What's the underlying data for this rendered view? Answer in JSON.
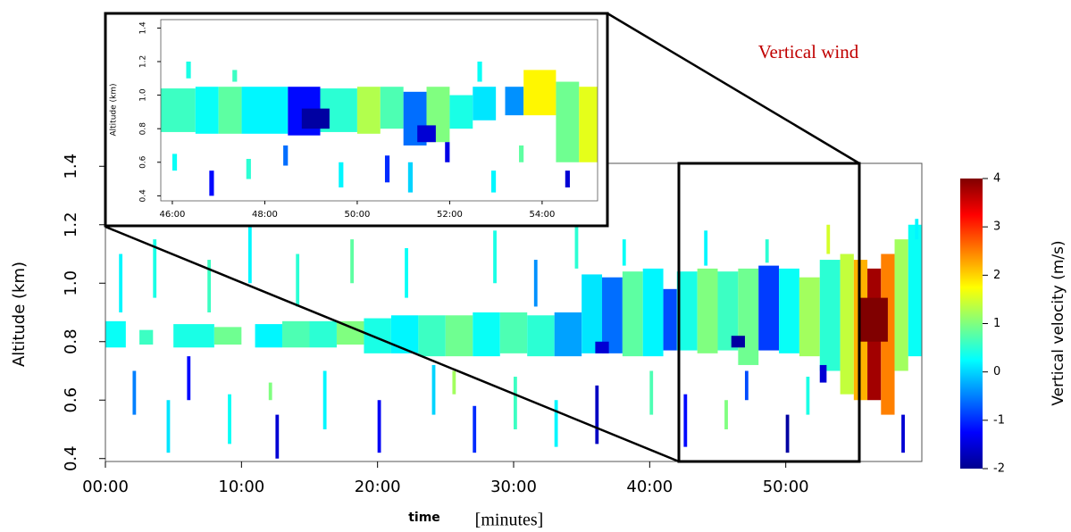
{
  "chart_data": [
    {
      "type": "heatmap",
      "title": "Vertical wind",
      "xlabel": "time",
      "xlabel_note": "[minutes]",
      "ylabel": "Altitude (km)",
      "xlim": [
        0,
        60
      ],
      "ylim": [
        0.39,
        1.41
      ],
      "xticks": [
        {
          "value": 0,
          "label": "00:00"
        },
        {
          "value": 10,
          "label": "10:00"
        },
        {
          "value": 20,
          "label": "20:00"
        },
        {
          "value": 30,
          "label": "30:00"
        },
        {
          "value": 40,
          "label": "40:00"
        },
        {
          "value": 50,
          "label": "50:00"
        }
      ],
      "yticks": [
        0.4,
        0.6,
        0.8,
        {
          "value": 1,
          "label": "1.0"
        },
        1.2,
        1.4
      ],
      "colorbar": {
        "label": "Vertical velocity (m/s)",
        "clim": [
          -2,
          4
        ],
        "ticks": [
          -2,
          -1,
          0,
          1,
          2,
          3,
          4
        ],
        "colormap": "jet"
      },
      "cells": [
        [
          0,
          1.5,
          0.78,
          0.87,
          0.3
        ],
        [
          2.5,
          3.5,
          0.79,
          0.84,
          0.6
        ],
        [
          5,
          8,
          0.78,
          0.86,
          0.4
        ],
        [
          8,
          10,
          0.79,
          0.85,
          0.9
        ],
        [
          11,
          13,
          0.78,
          0.86,
          0.2
        ],
        [
          13,
          15,
          0.78,
          0.87,
          0.7
        ],
        [
          15,
          17,
          0.78,
          0.87,
          0.5
        ],
        [
          17,
          19,
          0.79,
          0.87,
          1.0
        ],
        [
          19,
          21,
          0.76,
          0.88,
          0.4
        ],
        [
          21,
          23,
          0.76,
          0.89,
          0.2
        ],
        [
          23,
          25,
          0.75,
          0.89,
          0.6
        ],
        [
          25,
          27,
          0.75,
          0.89,
          0.9
        ],
        [
          27,
          29,
          0.75,
          0.9,
          0.3
        ],
        [
          29,
          31,
          0.76,
          0.9,
          0.7
        ],
        [
          31,
          33,
          0.75,
          0.89,
          0.5
        ],
        [
          33,
          35,
          0.75,
          0.9,
          -0.3
        ],
        [
          35,
          36.5,
          0.76,
          1.03,
          0.1
        ],
        [
          36.5,
          38,
          0.76,
          1.02,
          -0.6
        ],
        [
          38,
          39.5,
          0.75,
          1.04,
          0.8
        ],
        [
          39.5,
          41,
          0.75,
          1.05,
          0.2
        ],
        [
          41,
          42,
          0.77,
          0.98,
          -0.8
        ],
        [
          42,
          43.5,
          0.77,
          1.04,
          0.4
        ],
        [
          43.5,
          45,
          0.76,
          1.05,
          1.0
        ],
        [
          45,
          46.5,
          0.77,
          1.04,
          0.6
        ],
        [
          46.5,
          48,
          0.72,
          1.05,
          0.9
        ],
        [
          48,
          49.5,
          0.77,
          1.06,
          -0.9
        ],
        [
          49.5,
          51,
          0.76,
          1.05,
          0.3
        ],
        [
          51,
          52.5,
          0.75,
          1.02,
          1.2
        ],
        [
          52.5,
          54,
          0.7,
          1.08,
          0.5
        ],
        [
          54,
          55,
          0.62,
          1.1,
          1.4
        ],
        [
          55,
          56,
          0.6,
          1.08,
          2.2
        ],
        [
          56,
          57,
          0.6,
          1.05,
          3.8
        ],
        [
          57,
          58,
          0.55,
          1.1,
          2.5
        ],
        [
          58,
          59,
          0.7,
          1.15,
          1.2
        ],
        [
          59,
          60,
          0.75,
          1.2,
          0.3
        ],
        [
          55.5,
          57.5,
          0.8,
          0.95,
          4
        ],
        [
          36,
          37,
          0.76,
          0.8,
          -1.5
        ],
        [
          46,
          47,
          0.78,
          0.82,
          -1.8
        ],
        [
          52.5,
          53,
          0.66,
          0.72,
          -1.5
        ],
        [
          1,
          1.25,
          0.9,
          1.1,
          0.2
        ],
        [
          2,
          2.25,
          0.55,
          0.7,
          -0.5
        ],
        [
          3.5,
          3.75,
          0.95,
          1.15,
          0.4
        ],
        [
          4.5,
          4.75,
          0.42,
          0.6,
          0.1
        ],
        [
          6,
          6.25,
          0.6,
          0.75,
          -1.2
        ],
        [
          7.5,
          7.75,
          0.9,
          1.08,
          0.6
        ],
        [
          9,
          9.25,
          0.45,
          0.62,
          0.3
        ],
        [
          10.5,
          10.75,
          1.0,
          1.2,
          0.2
        ],
        [
          12,
          12.25,
          0.6,
          0.66,
          1.0
        ],
        [
          12.5,
          12.75,
          0.4,
          0.55,
          -1.5
        ],
        [
          14,
          14.25,
          0.92,
          1.1,
          0.5
        ],
        [
          16,
          16.25,
          0.5,
          0.7,
          0.2
        ],
        [
          18,
          18.25,
          1.0,
          1.15,
          0.8
        ],
        [
          20,
          20.25,
          0.42,
          0.6,
          -1.3
        ],
        [
          22,
          22.25,
          0.95,
          1.12,
          0.3
        ],
        [
          24,
          24.25,
          0.55,
          0.72,
          0.0
        ],
        [
          25.5,
          25.75,
          0.62,
          0.7,
          1.2
        ],
        [
          27,
          27.25,
          0.42,
          0.58,
          -1.0
        ],
        [
          28.5,
          28.75,
          1.0,
          1.18,
          0.4
        ],
        [
          30,
          30.25,
          0.5,
          0.68,
          0.6
        ],
        [
          31.5,
          31.75,
          0.92,
          1.08,
          -0.4
        ],
        [
          33,
          33.25,
          0.44,
          0.6,
          0.2
        ],
        [
          34.5,
          34.75,
          1.05,
          1.2,
          0.5
        ],
        [
          36,
          36.25,
          0.45,
          0.65,
          -1.6
        ],
        [
          38,
          38.25,
          1.06,
          1.15,
          0.3
        ],
        [
          40,
          40.25,
          0.55,
          0.7,
          0.7
        ],
        [
          42.5,
          42.75,
          0.44,
          0.62,
          -1.2
        ],
        [
          44,
          44.25,
          1.06,
          1.18,
          0.2
        ],
        [
          45.5,
          45.75,
          0.5,
          0.6,
          1.0
        ],
        [
          47,
          47.25,
          0.6,
          0.7,
          -0.8
        ],
        [
          48.5,
          48.75,
          1.07,
          1.15,
          0.5
        ],
        [
          50,
          50.25,
          0.42,
          0.55,
          -1.8
        ],
        [
          51.5,
          51.75,
          0.55,
          0.68,
          0.4
        ],
        [
          53,
          53.25,
          1.1,
          1.2,
          1.5
        ],
        [
          58.5,
          58.75,
          0.42,
          0.55,
          -1.5
        ],
        [
          59.5,
          59.75,
          1.15,
          1.22,
          0.2
        ]
      ]
    },
    {
      "type": "heatmap",
      "ylabel": "Altitude (km)",
      "xlim": [
        45.75,
        55.2
      ],
      "ylim": [
        0.37,
        1.45
      ],
      "xticks": [
        {
          "value": 46,
          "label": "46:00"
        },
        {
          "value": 48,
          "label": "48:00"
        },
        {
          "value": 50,
          "label": "50:00"
        },
        {
          "value": 52,
          "label": "52:00"
        },
        {
          "value": 54,
          "label": "54:00"
        }
      ],
      "yticks": [
        0.4,
        0.6,
        0.8,
        {
          "value": 1,
          "label": "1.0"
        },
        1.2,
        1.4
      ],
      "cells": [
        [
          45.75,
          46.5,
          0.78,
          1.04,
          0.6
        ],
        [
          46.5,
          47,
          0.77,
          1.05,
          0.3
        ],
        [
          47,
          47.5,
          0.77,
          1.05,
          0.8
        ],
        [
          47.5,
          48.5,
          0.77,
          1.05,
          0.2
        ],
        [
          48.5,
          49.2,
          0.76,
          1.05,
          -1.2
        ],
        [
          49.2,
          50,
          0.78,
          1.04,
          0.5
        ],
        [
          50,
          50.5,
          0.77,
          1.05,
          1.3
        ],
        [
          50.5,
          51,
          0.8,
          1.05,
          0.7
        ],
        [
          51,
          51.5,
          0.7,
          1.02,
          -0.6
        ],
        [
          51.5,
          52,
          0.72,
          1.05,
          1.0
        ],
        [
          52,
          52.5,
          0.8,
          1.0,
          0.4
        ],
        [
          52.5,
          53,
          0.85,
          1.05,
          0.1
        ],
        [
          53.2,
          53.6,
          0.88,
          1.05,
          -0.4
        ],
        [
          53.6,
          54.3,
          0.88,
          1.15,
          1.8
        ],
        [
          54.3,
          54.8,
          0.6,
          1.08,
          0.9
        ],
        [
          54.8,
          55.2,
          0.6,
          1.05,
          1.6
        ],
        [
          48.8,
          49.4,
          0.8,
          0.92,
          -1.8
        ],
        [
          51.3,
          51.7,
          0.72,
          0.82,
          -1.5
        ],
        [
          46,
          46.1,
          0.55,
          0.65,
          0.3
        ],
        [
          46.8,
          46.9,
          0.4,
          0.55,
          -1.2
        ],
        [
          47.6,
          47.7,
          0.5,
          0.62,
          0.5
        ],
        [
          48.4,
          48.5,
          0.58,
          0.7,
          -0.6
        ],
        [
          49.6,
          49.7,
          0.45,
          0.6,
          0.2
        ],
        [
          50.6,
          50.7,
          0.48,
          0.64,
          -1.0
        ],
        [
          51.1,
          51.2,
          0.42,
          0.6,
          0.0
        ],
        [
          51.9,
          52,
          0.6,
          0.72,
          -1.4
        ],
        [
          52.9,
          53,
          0.42,
          0.55,
          0.2
        ],
        [
          53.5,
          53.6,
          0.6,
          0.7,
          0.8
        ],
        [
          54.5,
          54.6,
          0.45,
          0.55,
          -1.5
        ],
        [
          46.3,
          46.4,
          1.1,
          1.2,
          0.4
        ],
        [
          47.3,
          47.4,
          1.08,
          1.15,
          0.6
        ],
        [
          52.6,
          52.7,
          1.08,
          1.2,
          0.3
        ]
      ]
    }
  ]
}
